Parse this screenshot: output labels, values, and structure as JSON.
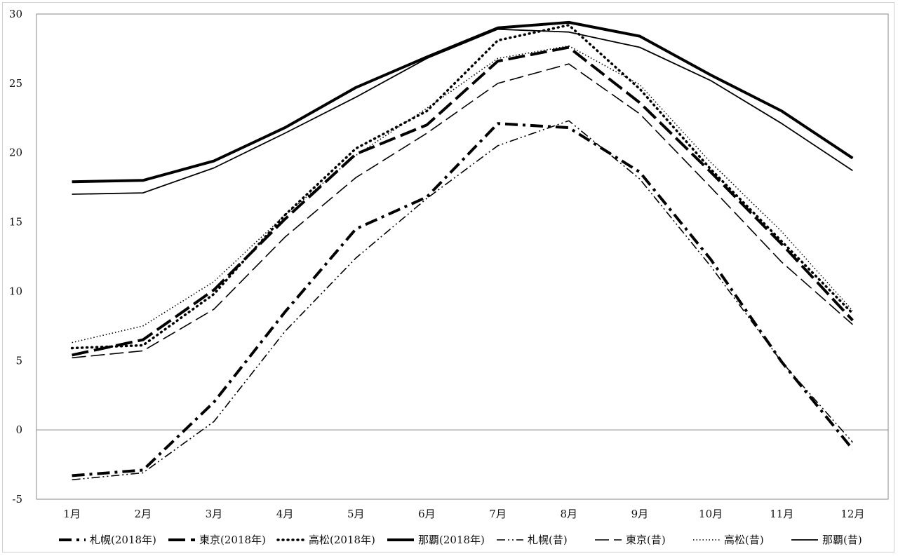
{
  "chart_data": {
    "type": "line",
    "title": "",
    "xlabel": "",
    "ylabel": "",
    "categories": [
      "1月",
      "2月",
      "3月",
      "4月",
      "5月",
      "6月",
      "7月",
      "8月",
      "9月",
      "10月",
      "11月",
      "12月"
    ],
    "ylim": [
      -5,
      30
    ],
    "yticks": [
      -5,
      0,
      5,
      10,
      15,
      20,
      25,
      30
    ],
    "grid": false,
    "legend_position": "bottom",
    "series": [
      {
        "name": "札幌(2018年)",
        "style": "dash-thick",
        "values": [
          -3.3,
          -2.9,
          2.0,
          8.5,
          14.5,
          16.8,
          22.1,
          21.8,
          18.6,
          12.3,
          4.9,
          -1.4
        ]
      },
      {
        "name": "東京(2018年)",
        "style": "longdash-thick",
        "values": [
          5.4,
          6.5,
          10.1,
          15.2,
          19.9,
          22.0,
          26.6,
          27.6,
          23.6,
          18.6,
          13.4,
          7.9
        ]
      },
      {
        "name": "高松(2018年)",
        "style": "dot-thick",
        "values": [
          5.9,
          6.1,
          9.8,
          15.5,
          20.3,
          23.0,
          28.1,
          29.2,
          24.6,
          18.8,
          13.6,
          8.4
        ]
      },
      {
        "name": "那覇(2018年)",
        "style": "solid-thick",
        "values": [
          17.9,
          18.0,
          19.4,
          21.8,
          24.7,
          26.9,
          29.0,
          29.4,
          28.4,
          25.6,
          23.0,
          19.6
        ]
      },
      {
        "name": "札幌(昔)",
        "style": "dashdotdot-thin",
        "values": [
          -3.6,
          -3.1,
          0.6,
          7.1,
          12.4,
          16.7,
          20.5,
          22.3,
          18.1,
          11.8,
          4.9,
          -0.9
        ]
      },
      {
        "name": "東京(昔)",
        "style": "longdash-thin",
        "values": [
          5.2,
          5.7,
          8.7,
          13.9,
          18.2,
          21.4,
          25.0,
          26.4,
          22.8,
          17.5,
          12.1,
          7.6
        ]
      },
      {
        "name": "高松(昔)",
        "style": "dot-thin",
        "values": [
          6.3,
          7.5,
          10.7,
          15.5,
          19.8,
          23.2,
          26.8,
          27.7,
          24.9,
          19.3,
          14.3,
          8.6
        ]
      },
      {
        "name": "那覇(昔)",
        "style": "solid-thin",
        "values": [
          17.0,
          17.1,
          18.9,
          21.4,
          24.0,
          26.8,
          28.9,
          28.7,
          27.6,
          25.2,
          22.1,
          18.7
        ]
      }
    ]
  }
}
